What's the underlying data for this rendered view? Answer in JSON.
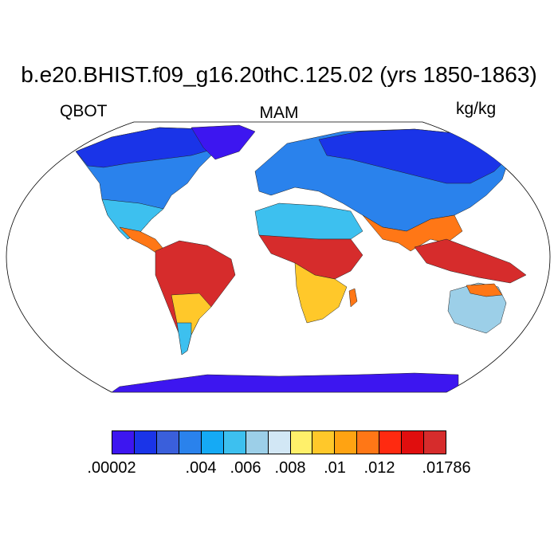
{
  "title": "b.e20.BHIST.f09_g16.20thC.125.02 (yrs 1850-1863)",
  "left_label": "QBOT",
  "center_label": "MAM",
  "right_label": "kg/kg",
  "projection": "Robinson",
  "colorbar": {
    "colors": [
      "#3d16f0",
      "#1a34e8",
      "#3a5fdb",
      "#2a82ec",
      "#15aaf5",
      "#3dc0ef",
      "#9ccfe8",
      "#d2e7f5",
      "#fff06a",
      "#ffc82a",
      "#ffa312",
      "#ff7716",
      "#ff2a10",
      "#e00e0e",
      "#d62c2c"
    ],
    "tick_labels": [
      ".00002",
      ".004",
      ".006",
      ".008",
      ".01",
      ".012",
      ".01786"
    ]
  },
  "map_colors": {
    "ocean": "#ffffff",
    "polar": "#3d16f0",
    "cold": "#1a34e8",
    "cool": "#2a82ec",
    "mild": "#3dc0ef",
    "pale": "#9ccfe8",
    "warm": "#ffc82a",
    "hot": "#ff7716",
    "tropical": "#d62c2c"
  }
}
